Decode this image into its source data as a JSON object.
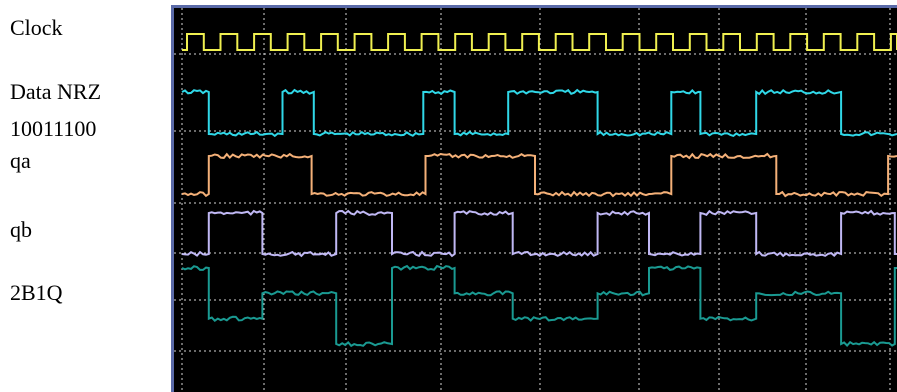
{
  "labels": {
    "clock": "Clock",
    "data_nrz": "Data NRZ",
    "bits": "10011100",
    "qa": "qa",
    "qb": "qb",
    "twob1q": "2B1Q"
  },
  "colors": {
    "background": "#000000",
    "grid": "#d8d8d8",
    "border": "#5a6aa8",
    "clock": "#f0f050",
    "data": "#30d8e8",
    "qa": "#f4b078",
    "qb": "#c0b8f4",
    "twob1q": "#1a9a92"
  },
  "chart_data": {
    "type": "line",
    "x_range": [
      0,
      16
    ],
    "grid": true,
    "series": [
      {
        "key": "clock",
        "kind": "square",
        "period": 0.75,
        "duty": 0.5,
        "levels": [
          0,
          1
        ]
      },
      {
        "key": "data",
        "kind": "steps",
        "levels": [
          0,
          1
        ],
        "steps": [
          [
            0,
            1
          ],
          [
            0.6,
            0
          ],
          [
            2.25,
            1
          ],
          [
            2.95,
            0
          ],
          [
            5.4,
            1
          ],
          [
            6.1,
            0
          ],
          [
            7.3,
            1
          ],
          [
            9.3,
            0
          ],
          [
            10.95,
            1
          ],
          [
            11.6,
            0
          ],
          [
            12.85,
            1
          ],
          [
            14.75,
            0
          ],
          [
            16,
            0
          ]
        ]
      },
      {
        "key": "qa",
        "kind": "steps",
        "levels": [
          0,
          1
        ],
        "steps": [
          [
            0,
            0
          ],
          [
            0.6,
            1
          ],
          [
            2.9,
            0
          ],
          [
            5.45,
            1
          ],
          [
            7.9,
            0
          ],
          [
            10.95,
            1
          ],
          [
            13.3,
            0
          ],
          [
            15.8,
            1
          ],
          [
            16,
            1
          ]
        ]
      },
      {
        "key": "qb",
        "kind": "steps",
        "levels": [
          0,
          1
        ],
        "steps": [
          [
            0,
            0
          ],
          [
            0.6,
            1
          ],
          [
            1.8,
            0
          ],
          [
            3.45,
            1
          ],
          [
            4.7,
            0
          ],
          [
            6.1,
            1
          ],
          [
            7.4,
            0
          ],
          [
            9.3,
            1
          ],
          [
            10.45,
            0
          ],
          [
            11.6,
            1
          ],
          [
            12.85,
            0
          ],
          [
            14.75,
            1
          ],
          [
            15.95,
            0
          ],
          [
            16,
            0
          ]
        ]
      },
      {
        "key": "twob1q",
        "kind": "steps",
        "levels": [
          -3,
          -1,
          1,
          3
        ],
        "steps": [
          [
            0,
            3
          ],
          [
            0.6,
            -1
          ],
          [
            1.8,
            1
          ],
          [
            3.45,
            -3
          ],
          [
            4.7,
            3
          ],
          [
            6.1,
            1
          ],
          [
            7.4,
            -1
          ],
          [
            9.3,
            1
          ],
          [
            10.45,
            3
          ],
          [
            11.6,
            -1
          ],
          [
            12.85,
            1
          ],
          [
            14.75,
            -3
          ],
          [
            15.95,
            3
          ],
          [
            16,
            3
          ]
        ]
      }
    ]
  }
}
